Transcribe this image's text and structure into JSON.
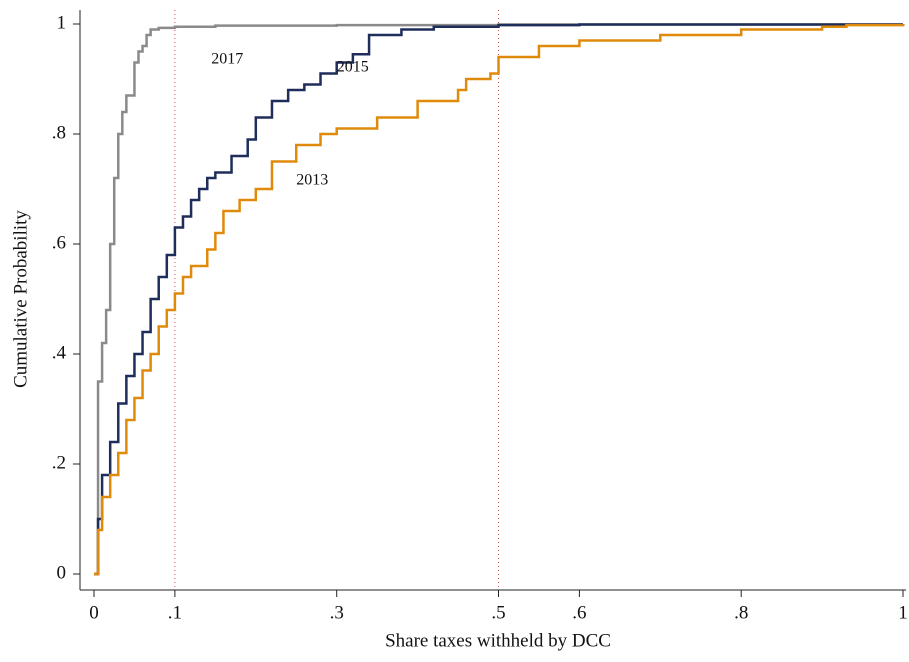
{
  "chart_data": {
    "type": "line",
    "x_label": "Share taxes withheld by DCC",
    "y_label": "Cumulative Probability",
    "xlim": [
      0,
      1
    ],
    "ylim": [
      0,
      1
    ],
    "xticks": [
      0,
      {
        "value": 0.1,
        "label": ".1"
      },
      {
        "value": 0.3,
        "label": ".3"
      },
      {
        "value": 0.5,
        "label": ".5"
      },
      {
        "value": 0.6,
        "label": ".6"
      },
      {
        "value": 0.8,
        "label": ".8"
      },
      1
    ],
    "yticks": [
      0,
      {
        "value": 0.2,
        "label": ".2"
      },
      {
        "value": 0.4,
        "label": ".4"
      },
      {
        "value": 0.6,
        "label": ".6"
      },
      {
        "value": 0.8,
        "label": ".8"
      },
      1
    ],
    "vlines": [
      0.1,
      0.5
    ],
    "vline_color": "#e05050",
    "series": [
      {
        "name": "2017",
        "color": "#8a8a8a",
        "x": [
          0,
          0.005,
          0.01,
          0.015,
          0.02,
          0.025,
          0.03,
          0.035,
          0.04,
          0.05,
          0.055,
          0.06,
          0.065,
          0.07,
          0.08,
          0.1,
          0.15,
          0.3,
          0.5,
          1
        ],
        "values": [
          0,
          0.35,
          0.42,
          0.48,
          0.6,
          0.72,
          0.8,
          0.84,
          0.87,
          0.93,
          0.95,
          0.96,
          0.98,
          0.99,
          0.993,
          0.995,
          0.997,
          0.998,
          0.999,
          1
        ]
      },
      {
        "name": "2015",
        "color": "#1f2d5a",
        "x": [
          0,
          0.005,
          0.01,
          0.02,
          0.03,
          0.04,
          0.05,
          0.06,
          0.07,
          0.08,
          0.09,
          0.1,
          0.11,
          0.12,
          0.13,
          0.14,
          0.15,
          0.17,
          0.19,
          0.2,
          0.22,
          0.24,
          0.26,
          0.28,
          0.3,
          0.32,
          0.34,
          0.38,
          0.42,
          0.5,
          0.6,
          1
        ],
        "values": [
          0,
          0.1,
          0.18,
          0.24,
          0.31,
          0.36,
          0.4,
          0.44,
          0.5,
          0.54,
          0.58,
          0.63,
          0.65,
          0.68,
          0.7,
          0.72,
          0.73,
          0.76,
          0.79,
          0.83,
          0.86,
          0.88,
          0.89,
          0.91,
          0.93,
          0.945,
          0.98,
          0.99,
          0.995,
          0.998,
          0.999,
          1
        ]
      },
      {
        "name": "2013",
        "color": "#e08a0b",
        "x": [
          0,
          0.005,
          0.01,
          0.02,
          0.03,
          0.04,
          0.05,
          0.06,
          0.07,
          0.08,
          0.09,
          0.1,
          0.11,
          0.12,
          0.14,
          0.15,
          0.16,
          0.18,
          0.2,
          0.22,
          0.25,
          0.28,
          0.3,
          0.35,
          0.4,
          0.45,
          0.46,
          0.49,
          0.5,
          0.55,
          0.6,
          0.7,
          0.8,
          0.9,
          0.93,
          1
        ],
        "values": [
          0,
          0.08,
          0.14,
          0.18,
          0.22,
          0.28,
          0.32,
          0.37,
          0.4,
          0.45,
          0.48,
          0.51,
          0.54,
          0.56,
          0.59,
          0.62,
          0.66,
          0.68,
          0.7,
          0.75,
          0.78,
          0.8,
          0.81,
          0.83,
          0.86,
          0.88,
          0.9,
          0.91,
          0.94,
          0.96,
          0.97,
          0.98,
          0.99,
          0.995,
          0.998,
          1
        ]
      }
    ]
  }
}
